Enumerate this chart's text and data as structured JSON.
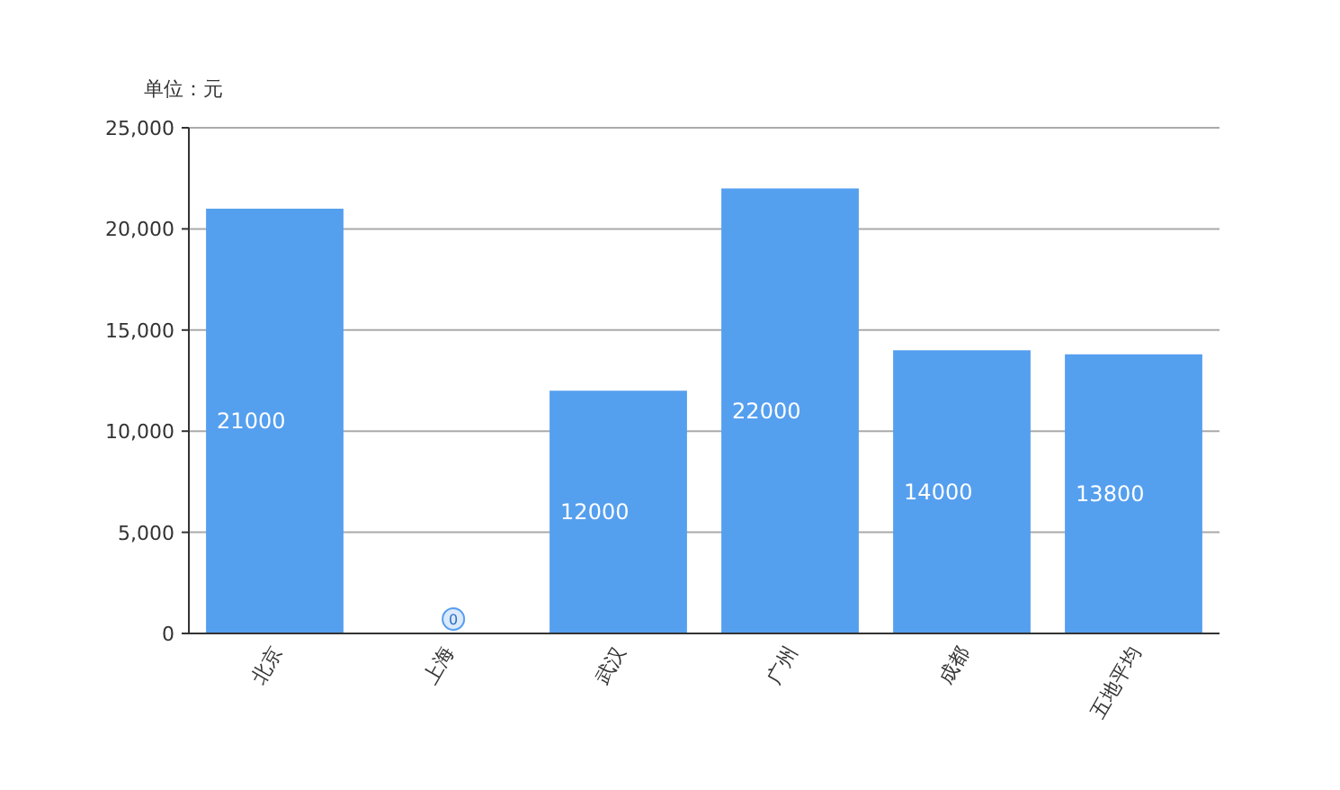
{
  "chart_data": {
    "type": "bar",
    "ylabel": "单位：元",
    "categories": [
      "北京",
      "上海",
      "武汉",
      "广州",
      "成都",
      "五地平均"
    ],
    "values": [
      21000,
      0,
      12000,
      22000,
      14000,
      13800
    ],
    "color": "#559fef",
    "data_labels": true,
    "grid": "y",
    "ylim": [
      0,
      25000
    ],
    "yticks": [
      0,
      {
        "value": 5000,
        "label": "5,000"
      },
      {
        "value": 10000,
        "label": "10,000"
      },
      {
        "value": 15000,
        "label": "15,000"
      },
      {
        "value": 20000,
        "label": "20,000"
      },
      {
        "value": 25000,
        "label": "25,000"
      }
    ]
  }
}
